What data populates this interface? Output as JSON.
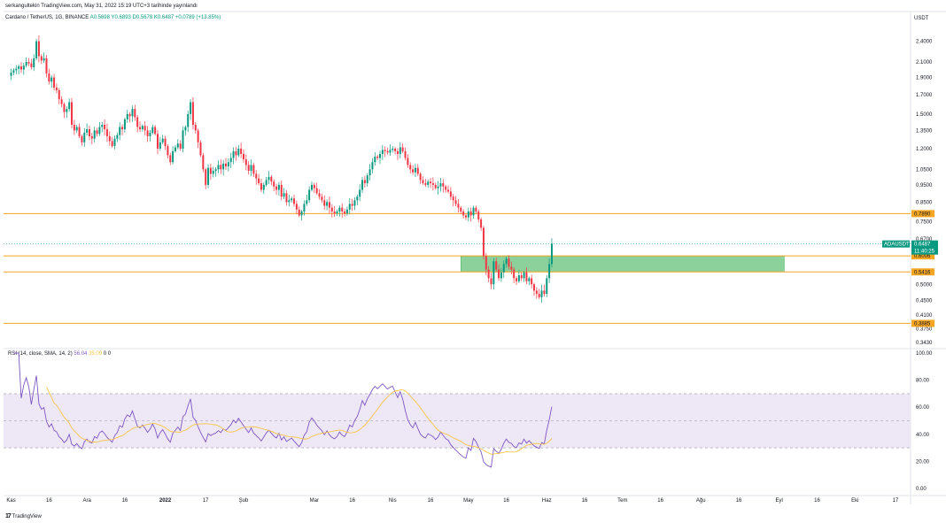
{
  "header": {
    "published": "serkangultekin TradingView.com, May 31, 2022 15:19 UTC+3 tarihinde yayınlandı",
    "symbol": "Cardano / TetherUS, 1G, BINANCE",
    "ohlc": "A0.5698  Y0.6893  D0.5678  K0.6487  +0.0789 (+13.85%)"
  },
  "footer": {
    "logo": "17",
    "brand": "TradingView"
  },
  "rsi_legend": {
    "label": "RSI (14, close, SMA, 14, 2)",
    "value1": "56.04",
    "value2": "35.09",
    "value3": "0  0"
  },
  "badges": {
    "currency": "USDT",
    "ticker": "ADAUSDT",
    "price": "0.6487",
    "countdown": "11:40:25"
  },
  "colors": {
    "up": "#089981",
    "down": "#f23645",
    "level": "#f5a623",
    "zone": "#66c17a",
    "rsi": "#7e57c2",
    "rsi_ma": "#f7c548",
    "rsi_band": "#ede7f6",
    "dashed_price": "#26a69a"
  },
  "chart_data": {
    "type": "candlestick",
    "scale": "log",
    "price_axis": [
      "2.4000",
      "2.1000",
      "1.9000",
      "1.7000",
      "1.5000",
      "1.3500",
      "1.2000",
      "1.0500",
      "0.9500",
      "0.8500",
      "0.7500",
      "0.6700",
      "0.5000",
      "0.4500",
      "0.4100",
      "0.3750",
      "0.3430"
    ],
    "ylim": [
      0.33,
      2.7
    ],
    "time_axis": [
      {
        "label": "Kas",
        "day": 0
      },
      {
        "label": "16",
        "day": 15
      },
      {
        "label": "Ara",
        "day": 30
      },
      {
        "label": "16",
        "day": 45
      },
      {
        "label": "2022",
        "day": 61
      },
      {
        "label": "17",
        "day": 77
      },
      {
        "label": "Şub",
        "day": 92
      },
      {
        "label": "Mar",
        "day": 120
      },
      {
        "label": "16",
        "day": 135
      },
      {
        "label": "Nis",
        "day": 151
      },
      {
        "label": "16",
        "day": 166
      },
      {
        "label": "May",
        "day": 181
      },
      {
        "label": "16",
        "day": 196
      },
      {
        "label": "Haz",
        "day": 212
      },
      {
        "label": "16",
        "day": 227
      },
      {
        "label": "Tem",
        "day": 242
      },
      {
        "label": "16",
        "day": 257
      },
      {
        "label": "Ağu",
        "day": 273
      },
      {
        "label": "16",
        "day": 288
      },
      {
        "label": "Eyl",
        "day": 304
      },
      {
        "label": "16",
        "day": 319
      },
      {
        "label": "Eki",
        "day": 334
      },
      {
        "label": "17",
        "day": 350
      }
    ],
    "xlim_days": [
      -3,
      356
    ],
    "levels": [
      {
        "value": 0.789,
        "label": "0.7890"
      },
      {
        "value": 0.6006,
        "label": "0.6006"
      },
      {
        "value": 0.5416,
        "label": "0.5416"
      },
      {
        "value": 0.3885,
        "label": "0.3885"
      }
    ],
    "zone": {
      "from_day": 178,
      "to_day": 306,
      "low": 0.5416,
      "high": 0.6006
    },
    "last_price": 0.6487,
    "closes": [
      1.96,
      1.99,
      2.01,
      2.04,
      2.0,
      2.05,
      2.1,
      2.08,
      2.03,
      2.15,
      2.4,
      2.18,
      2.12,
      2.15,
      1.95,
      1.85,
      1.9,
      1.78,
      1.75,
      1.65,
      1.6,
      1.52,
      1.55,
      1.62,
      1.4,
      1.35,
      1.38,
      1.3,
      1.25,
      1.33,
      1.36,
      1.3,
      1.28,
      1.35,
      1.32,
      1.38,
      1.4,
      1.36,
      1.3,
      1.26,
      1.22,
      1.28,
      1.31,
      1.38,
      1.36,
      1.45,
      1.5,
      1.48,
      1.55,
      1.47,
      1.38,
      1.36,
      1.39,
      1.35,
      1.3,
      1.33,
      1.38,
      1.32,
      1.2,
      1.25,
      1.28,
      1.22,
      1.15,
      1.1,
      1.18,
      1.21,
      1.24,
      1.2,
      1.35,
      1.38,
      1.5,
      1.62,
      1.4,
      1.35,
      1.25,
      1.15,
      1.05,
      0.95,
      1.06,
      1.02,
      1.04,
      1.05,
      1.08,
      1.05,
      1.09,
      1.07,
      1.1,
      1.13,
      1.18,
      1.15,
      1.2,
      1.16,
      1.12,
      1.08,
      1.04,
      1.08,
      1.02,
      0.99,
      0.96,
      0.92,
      0.95,
      0.98,
      1.0,
      0.97,
      0.94,
      0.92,
      0.95,
      0.88,
      0.9,
      0.85,
      0.86,
      0.87,
      0.84,
      0.81,
      0.78,
      0.8,
      0.84,
      0.86,
      0.92,
      0.95,
      0.93,
      0.9,
      0.88,
      0.86,
      0.83,
      0.85,
      0.82,
      0.8,
      0.79,
      0.8,
      0.82,
      0.8,
      0.79,
      0.81,
      0.84,
      0.83,
      0.86,
      0.88,
      0.92,
      0.98,
      0.96,
      1.01,
      1.05,
      1.1,
      1.14,
      1.13,
      1.16,
      1.19,
      1.18,
      1.17,
      1.19,
      1.2,
      1.18,
      1.16,
      1.21,
      1.18,
      1.13,
      1.08,
      1.05,
      1.03,
      1.06,
      1.02,
      0.98,
      0.96,
      0.95,
      0.97,
      0.96,
      0.95,
      0.93,
      0.94,
      0.96,
      0.94,
      0.92,
      0.91,
      0.88,
      0.86,
      0.84,
      0.82,
      0.8,
      0.78,
      0.77,
      0.8,
      0.78,
      0.82,
      0.8,
      0.76,
      0.72,
      0.6,
      0.55,
      0.52,
      0.5,
      0.58,
      0.55,
      0.52,
      0.54,
      0.57,
      0.59,
      0.56,
      0.55,
      0.52,
      0.51,
      0.53,
      0.52,
      0.54,
      0.51,
      0.52,
      0.5,
      0.48,
      0.47,
      0.46,
      0.48,
      0.47,
      0.52,
      0.57,
      0.65
    ],
    "rsi_axis": [
      "100.00",
      "80.00",
      "60.00",
      "40.00",
      "20.00",
      "0.00"
    ],
    "rsi_bands": [
      70,
      50,
      30
    ],
    "rsi_last": 56.04,
    "rsi_ma_last": 35.09
  }
}
